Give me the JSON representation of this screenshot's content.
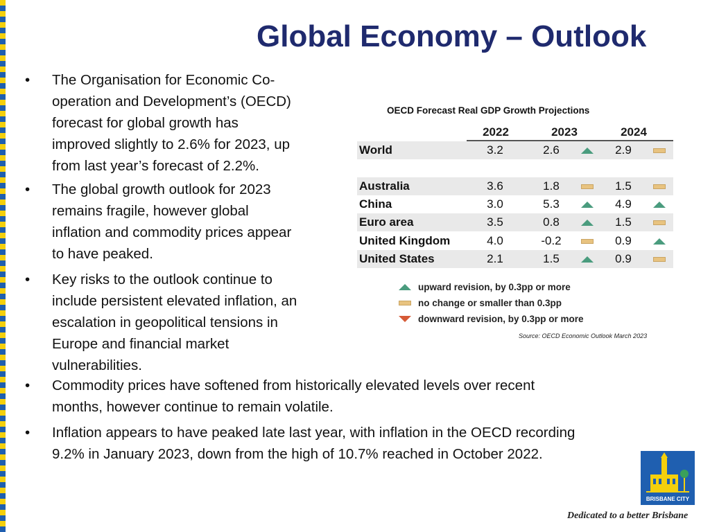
{
  "title": "Global Economy – Outlook",
  "bullet_symbol": "•",
  "bullets": [
    {
      "lines": [
        "The Organisation for Economic Co-",
        "operation and Development’s (OECD)",
        "forecast for global growth has",
        "improved slightly to 2.6% for 2023, up",
        "from last year’s forecast of 2.2%."
      ]
    },
    {
      "lines": [
        "The global growth outlook for 2023",
        "remains fragile, however global",
        "inflation and commodity prices appear",
        "to have peaked."
      ]
    },
    {
      "lines": [
        "Key risks to the outlook continue to",
        "include persistent elevated inflation, an",
        "escalation in geopolitical tensions in",
        "Europe and financial market",
        "vulnerabilities."
      ]
    },
    {
      "lines": [
        "Commodity prices have softened from historically elevated levels over recent",
        "months, however continue to remain volatile."
      ]
    },
    {
      "lines": [
        "Inflation appears to have peaked late last year, with inflation in the OECD recording",
        "9.2% in January 2023, down from the high of 10.7% reached in October 2022."
      ]
    }
  ],
  "table": {
    "title": "OECD Forecast Real GDP Growth Projections",
    "columns": [
      "2022",
      "2023",
      "2024"
    ],
    "rows": [
      {
        "name": "World",
        "values": [
          "3.2",
          "2.6",
          "2.9"
        ],
        "rev2023": "up",
        "rev2024": "flat"
      },
      {
        "name": "Australia",
        "values": [
          "3.6",
          "1.8",
          "1.5"
        ],
        "rev2023": "flat",
        "rev2024": "flat"
      },
      {
        "name": "China",
        "values": [
          "3.0",
          "5.3",
          "4.9"
        ],
        "rev2023": "up",
        "rev2024": "up"
      },
      {
        "name": "Euro area",
        "values": [
          "3.5",
          "0.8",
          "1.5"
        ],
        "rev2023": "up",
        "rev2024": "flat"
      },
      {
        "name": "United Kingdom",
        "values": [
          "4.0",
          "-0.2",
          "0.9"
        ],
        "rev2023": "flat",
        "rev2024": "up"
      },
      {
        "name": "United States",
        "values": [
          "2.1",
          "1.5",
          "0.9"
        ],
        "rev2023": "up",
        "rev2024": "flat"
      }
    ],
    "legend": [
      {
        "type": "up",
        "label": "upward revision, by 0.3pp or more"
      },
      {
        "type": "flat",
        "label": "no change or smaller than 0.3pp"
      },
      {
        "type": "down",
        "label": "downward revision, by 0.3pp or more"
      }
    ],
    "source": "Source: OECD Economic Outlook March 2023"
  },
  "colors": {
    "title": "#1f2a6e",
    "up": "#4a9c7e",
    "flat": "#e8c380",
    "down": "#d65a36",
    "logo_bg": "#1f5fb0",
    "stripe_yellow": "#f5d00c",
    "stripe_blue": "#1f5fb0"
  },
  "logo": {
    "text": "BRISBANE CITY"
  },
  "tagline": "Dedicated to a better Brisbane"
}
